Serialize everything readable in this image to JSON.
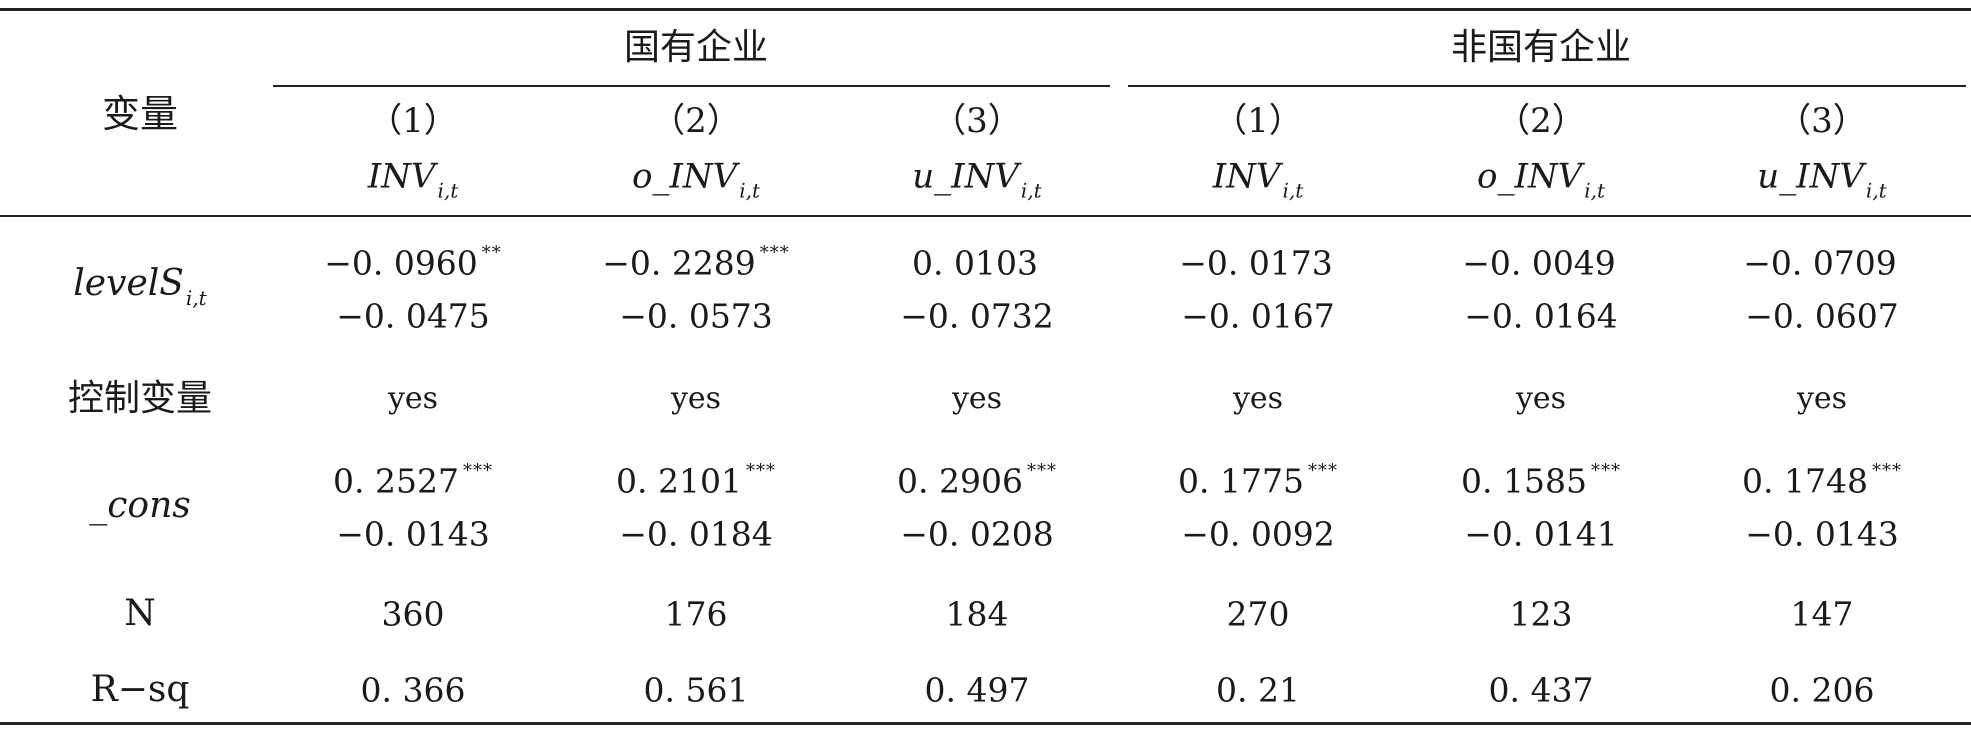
{
  "header": {
    "variable_label": "变量",
    "groups": [
      {
        "label": "国有企业"
      },
      {
        "label": "非国有企业"
      }
    ],
    "columns": [
      {
        "num": "（1）",
        "dv": "INV",
        "sub": "i,t"
      },
      {
        "num": "（2）",
        "dv": "o_INV",
        "sub": "i,t"
      },
      {
        "num": "（3）",
        "dv": "u_INV",
        "sub": "i,t"
      },
      {
        "num": "（1）",
        "dv": "INV",
        "sub": "i,t"
      },
      {
        "num": "（2）",
        "dv": "o_INV",
        "sub": "i,t"
      },
      {
        "num": "（3）",
        "dv": "u_INV",
        "sub": "i,t"
      }
    ]
  },
  "rows": {
    "levelS": {
      "label": "levelS",
      "sub": "i,t",
      "coef": [
        {
          "v": "−0. 0960",
          "s": "**"
        },
        {
          "v": "−0. 2289",
          "s": "***"
        },
        {
          "v": "0. 0103",
          "s": ""
        },
        {
          "v": "−0. 0173",
          "s": ""
        },
        {
          "v": "−0. 0049",
          "s": ""
        },
        {
          "v": "−0. 0709",
          "s": ""
        }
      ],
      "se": [
        "−0. 0475",
        "−0. 0573",
        "−0. 0732",
        "−0. 0167",
        "−0. 0164",
        "−0. 0607"
      ]
    },
    "controls": {
      "label": "控制变量",
      "values": [
        "yes",
        "yes",
        "yes",
        "yes",
        "yes",
        "yes"
      ]
    },
    "cons": {
      "label": "_cons",
      "coef": [
        {
          "v": "0. 2527",
          "s": "***"
        },
        {
          "v": "0. 2101",
          "s": "***"
        },
        {
          "v": "0. 2906",
          "s": "***"
        },
        {
          "v": "0. 1775",
          "s": "***"
        },
        {
          "v": "0. 1585",
          "s": "***"
        },
        {
          "v": "0. 1748",
          "s": "***"
        }
      ],
      "se": [
        "−0. 0143",
        "−0. 0184",
        "−0. 0208",
        "−0. 0092",
        "−0. 0141",
        "−0. 0143"
      ]
    },
    "n": {
      "label": "N",
      "values": [
        "360",
        "176",
        "184",
        "270",
        "123",
        "147"
      ]
    },
    "rsq": {
      "label": "R−sq",
      "values": [
        "0. 366",
        "0. 561",
        "0. 497",
        "0. 21",
        "0. 437",
        "0. 206"
      ]
    }
  }
}
